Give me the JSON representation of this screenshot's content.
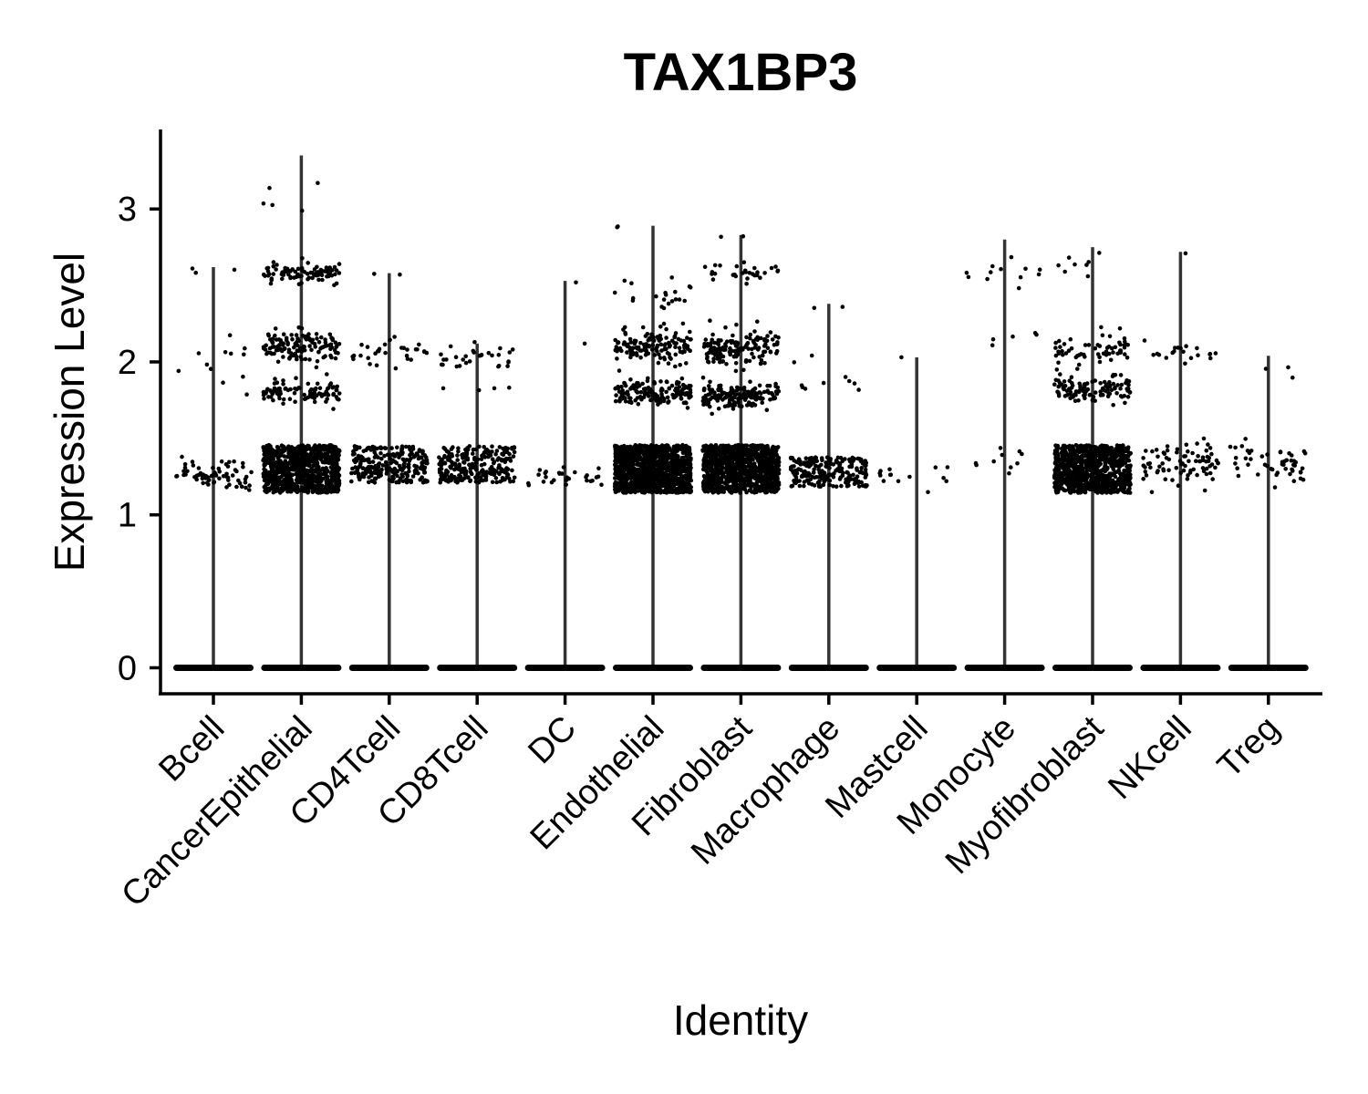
{
  "chart_data": {
    "type": "scatter",
    "subtype": "violin-jitter",
    "title": "TAX1BP3",
    "xlabel": "Identity",
    "ylabel": "Expression Level",
    "ylim": [
      -0.17,
      3.52
    ],
    "yticks": [
      0,
      1,
      2,
      3
    ],
    "grid": false,
    "legend": "none",
    "point_color": "#000000",
    "violin_line_color": "#333333",
    "categories": [
      "Bcell",
      "CancerEpithelial",
      "CD4Tcell",
      "CD8Tcell",
      "DC",
      "Endothelial",
      "Fibroblast",
      "Macrophage",
      "Mastcell",
      "Monocyte",
      "Myofibroblast",
      "NKcell",
      "Treg"
    ],
    "max_values": [
      2.62,
      3.35,
      2.58,
      2.12,
      2.53,
      2.89,
      2.83,
      2.38,
      2.03,
      2.8,
      2.75,
      2.72,
      2.04
    ],
    "nonzero_clusters": [
      [
        {
          "center": 1.27,
          "spread": 0.09,
          "n": 70
        },
        {
          "center": 1.95,
          "spread": 0.25,
          "n": 12
        },
        {
          "center": 2.58,
          "spread": 0.04,
          "n": 3
        }
      ],
      [
        {
          "center": 1.3,
          "spread": 0.13,
          "n": 900
        },
        {
          "center": 1.8,
          "spread": 0.06,
          "n": 90
        },
        {
          "center": 2.1,
          "spread": 0.08,
          "n": 130
        },
        {
          "center": 2.58,
          "spread": 0.05,
          "n": 90
        },
        {
          "center": 3.15,
          "spread": 0.15,
          "n": 5
        }
      ],
      [
        {
          "center": 1.33,
          "spread": 0.1,
          "n": 260
        },
        {
          "center": 2.05,
          "spread": 0.07,
          "n": 30
        },
        {
          "center": 2.58,
          "spread": 0.02,
          "n": 2
        }
      ],
      [
        {
          "center": 1.33,
          "spread": 0.1,
          "n": 260
        },
        {
          "center": 2.02,
          "spread": 0.07,
          "n": 30
        },
        {
          "center": 1.83,
          "spread": 0.02,
          "n": 4
        }
      ],
      [
        {
          "center": 1.24,
          "spread": 0.05,
          "n": 30
        },
        {
          "center": 2.12,
          "spread": 0.0,
          "n": 1
        },
        {
          "center": 2.52,
          "spread": 0.0,
          "n": 1
        }
      ],
      [
        {
          "center": 1.3,
          "spread": 0.13,
          "n": 1200
        },
        {
          "center": 1.8,
          "spread": 0.06,
          "n": 160
        },
        {
          "center": 2.1,
          "spread": 0.09,
          "n": 140
        },
        {
          "center": 2.45,
          "spread": 0.12,
          "n": 20
        },
        {
          "center": 2.88,
          "spread": 0.01,
          "n": 2
        }
      ],
      [
        {
          "center": 1.3,
          "spread": 0.13,
          "n": 1000
        },
        {
          "center": 1.78,
          "spread": 0.06,
          "n": 170
        },
        {
          "center": 2.1,
          "spread": 0.1,
          "n": 150
        },
        {
          "center": 2.58,
          "spread": 0.05,
          "n": 30
        },
        {
          "center": 2.82,
          "spread": 0.01,
          "n": 2
        }
      ],
      [
        {
          "center": 1.28,
          "spread": 0.08,
          "n": 230
        },
        {
          "center": 1.85,
          "spread": 0.18,
          "n": 10
        },
        {
          "center": 2.36,
          "spread": 0.02,
          "n": 2
        }
      ],
      [
        {
          "center": 1.25,
          "spread": 0.08,
          "n": 14
        },
        {
          "center": 2.03,
          "spread": 0.0,
          "n": 1
        }
      ],
      [
        {
          "center": 1.35,
          "spread": 0.08,
          "n": 10
        },
        {
          "center": 2.15,
          "spread": 0.05,
          "n": 5
        },
        {
          "center": 2.6,
          "spread": 0.1,
          "n": 12
        }
      ],
      [
        {
          "center": 1.3,
          "spread": 0.13,
          "n": 900
        },
        {
          "center": 1.82,
          "spread": 0.07,
          "n": 110
        },
        {
          "center": 2.08,
          "spread": 0.09,
          "n": 60
        },
        {
          "center": 2.65,
          "spread": 0.08,
          "n": 8
        }
      ],
      [
        {
          "center": 1.33,
          "spread": 0.1,
          "n": 80
        },
        {
          "center": 2.05,
          "spread": 0.06,
          "n": 20
        },
        {
          "center": 2.71,
          "spread": 0.0,
          "n": 1
        }
      ],
      [
        {
          "center": 1.33,
          "spread": 0.1,
          "n": 50
        },
        {
          "center": 1.98,
          "spread": 0.12,
          "n": 3
        }
      ]
    ]
  }
}
